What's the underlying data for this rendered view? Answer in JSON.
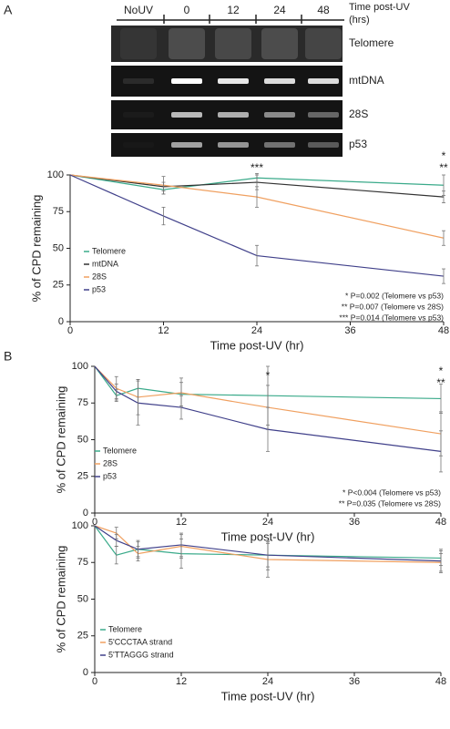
{
  "panel_labels": [
    "A",
    "B"
  ],
  "gel": {
    "columns": [
      "NoUV",
      "0",
      "12",
      "24",
      "48"
    ],
    "time_label": [
      "Time post-UV",
      "(hrs)"
    ],
    "lanes": [
      "Telomere",
      "mtDNA",
      "28S",
      "p53"
    ]
  },
  "chart_data": [
    {
      "type": "line",
      "xlabel": "Time post-UV (hr)",
      "ylabel": "% of CPD remaining",
      "x": [
        0,
        12,
        24,
        48
      ],
      "xlim": [
        0,
        48
      ],
      "xticks": [
        0,
        12,
        24,
        36,
        48
      ],
      "ylim": [
        0,
        100
      ],
      "yticks": [
        0,
        25,
        50,
        75,
        100
      ],
      "series": [
        {
          "name": "Telomere",
          "color": "#3aaa8a",
          "values": [
            100,
            90,
            98,
            93
          ],
          "errors": [
            0,
            3,
            3,
            7
          ]
        },
        {
          "name": "mtDNA",
          "color": "#333333",
          "values": [
            100,
            92,
            95,
            85
          ],
          "errors": [
            0,
            3,
            5,
            4
          ]
        },
        {
          "name": "28S",
          "color": "#f0a060",
          "values": [
            100,
            93,
            85,
            57
          ],
          "errors": [
            0,
            6,
            7,
            5
          ]
        },
        {
          "name": "p53",
          "color": "#40408a",
          "values": [
            100,
            72,
            45,
            31
          ],
          "errors": [
            0,
            6,
            7,
            5
          ]
        }
      ],
      "annotations": [
        "***",
        "*",
        "**"
      ],
      "stats": [
        "* P=0.002 (Telomere vs p53)",
        "** P=0.007 (Telomere vs 28S)",
        "*** P=0.014 (Telomere vs p53)"
      ]
    },
    {
      "type": "line",
      "xlabel": "Time post-UV (hr)",
      "ylabel": "% of CPD remaining",
      "x": [
        0,
        3,
        6,
        12,
        24,
        48
      ],
      "xlim": [
        0,
        48
      ],
      "xticks": [
        0,
        12,
        24,
        36,
        48
      ],
      "ylim": [
        0,
        100
      ],
      "yticks": [
        0,
        25,
        50,
        75,
        100
      ],
      "series": [
        {
          "name": "Telomere",
          "color": "#3aaa8a",
          "values": [
            100,
            80,
            85,
            81,
            80,
            78
          ],
          "errors": [
            0,
            4,
            6,
            8,
            20,
            10
          ]
        },
        {
          "name": "28S",
          "color": "#f0a060",
          "values": [
            100,
            85,
            79,
            82,
            72,
            54
          ],
          "errors": [
            0,
            8,
            12,
            10,
            15,
            15
          ]
        },
        {
          "name": "p53",
          "color": "#40408a",
          "values": [
            100,
            83,
            75,
            72,
            57,
            42
          ],
          "errors": [
            0,
            5,
            15,
            8,
            15,
            14
          ]
        }
      ],
      "annotations": [
        "*",
        "*",
        "**"
      ],
      "stats": [
        "* P<0.004 (Telomere vs p53)",
        "** P=0.035 (Telomere vs 28S)"
      ]
    },
    {
      "type": "line",
      "xlabel": "Time post-UV (hr)",
      "ylabel": "% of CPD remaining",
      "x": [
        0,
        3,
        6,
        12,
        24,
        48
      ],
      "xlim": [
        0,
        48
      ],
      "xticks": [
        0,
        12,
        24,
        36,
        48
      ],
      "ylim": [
        0,
        100
      ],
      "yticks": [
        0,
        25,
        50,
        75,
        100
      ],
      "series": [
        {
          "name": "Telomere",
          "color": "#3aaa8a",
          "values": [
            100,
            80,
            84,
            81,
            80,
            78
          ],
          "errors": [
            0,
            6,
            5,
            10,
            8,
            5
          ]
        },
        {
          "name": "5'CCCTAA strand",
          "color": "#f0a060",
          "values": [
            100,
            95,
            81,
            86,
            77,
            75
          ],
          "errors": [
            0,
            4,
            5,
            8,
            12,
            6
          ]
        },
        {
          "name": "5'TTAGGG strand",
          "color": "#40408a",
          "values": [
            100,
            90,
            84,
            87,
            80,
            76
          ],
          "errors": [
            0,
            4,
            6,
            8,
            10,
            8
          ]
        }
      ]
    }
  ]
}
